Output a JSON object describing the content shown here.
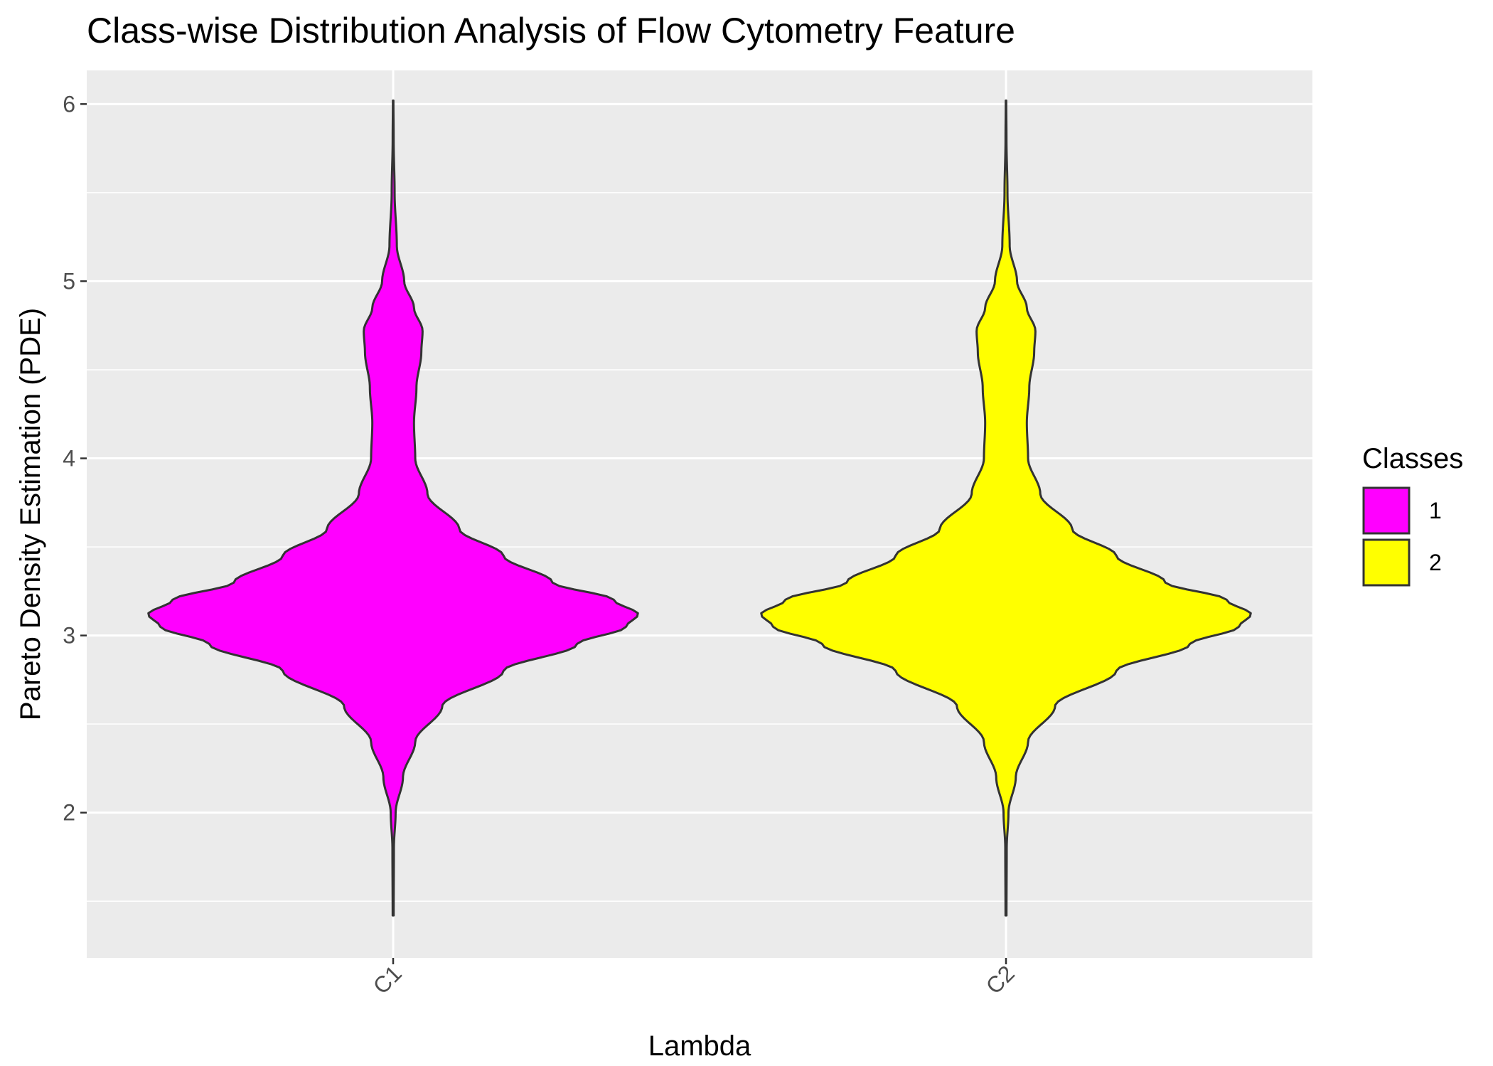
{
  "chart_data": {
    "type": "violin",
    "title": "Class-wise Distribution Analysis of Flow Cytometry Feature",
    "xlabel": "Lambda",
    "ylabel": "Pareto Density Estimation (PDE)",
    "categories": [
      "C1",
      "C2"
    ],
    "ylim": [
      1.18,
      6.19
    ],
    "yticks": [
      2,
      3,
      4,
      5,
      6
    ],
    "grid": true,
    "legend": {
      "title": "Classes",
      "position": "right",
      "entries": [
        {
          "label": "1",
          "color": "#FF00FF"
        },
        {
          "label": "2",
          "color": "#FFFF00"
        }
      ]
    },
    "series": [
      {
        "category": "C1",
        "class": "1",
        "color": "#FF00FF",
        "y_range": [
          1.42,
          6.02
        ],
        "density_profile": [
          [
            1.42,
            0.002
          ],
          [
            1.8,
            0.003
          ],
          [
            2.0,
            0.01
          ],
          [
            2.2,
            0.04
          ],
          [
            2.4,
            0.09
          ],
          [
            2.6,
            0.2
          ],
          [
            2.8,
            0.45
          ],
          [
            2.95,
            0.75
          ],
          [
            3.05,
            0.95
          ],
          [
            3.12,
            1.0
          ],
          [
            3.2,
            0.9
          ],
          [
            3.3,
            0.65
          ],
          [
            3.45,
            0.45
          ],
          [
            3.6,
            0.27
          ],
          [
            3.8,
            0.14
          ],
          [
            4.0,
            0.09
          ],
          [
            4.2,
            0.085
          ],
          [
            4.4,
            0.095
          ],
          [
            4.6,
            0.115
          ],
          [
            4.72,
            0.12
          ],
          [
            4.85,
            0.085
          ],
          [
            5.0,
            0.045
          ],
          [
            5.2,
            0.015
          ],
          [
            5.5,
            0.006
          ],
          [
            5.8,
            0.002
          ],
          [
            6.02,
            0.001
          ]
        ]
      },
      {
        "category": "C2",
        "class": "2",
        "color": "#FFFF00",
        "y_range": [
          1.42,
          6.02
        ],
        "density_profile": [
          [
            1.42,
            0.002
          ],
          [
            1.8,
            0.003
          ],
          [
            2.0,
            0.01
          ],
          [
            2.2,
            0.04
          ],
          [
            2.4,
            0.09
          ],
          [
            2.6,
            0.2
          ],
          [
            2.8,
            0.45
          ],
          [
            2.95,
            0.75
          ],
          [
            3.05,
            0.95
          ],
          [
            3.12,
            1.0
          ],
          [
            3.2,
            0.9
          ],
          [
            3.3,
            0.65
          ],
          [
            3.45,
            0.45
          ],
          [
            3.6,
            0.27
          ],
          [
            3.8,
            0.14
          ],
          [
            4.0,
            0.09
          ],
          [
            4.2,
            0.085
          ],
          [
            4.4,
            0.095
          ],
          [
            4.6,
            0.115
          ],
          [
            4.72,
            0.12
          ],
          [
            4.85,
            0.085
          ],
          [
            5.0,
            0.045
          ],
          [
            5.2,
            0.015
          ],
          [
            5.5,
            0.006
          ],
          [
            5.8,
            0.002
          ],
          [
            6.02,
            0.001
          ]
        ]
      }
    ]
  }
}
